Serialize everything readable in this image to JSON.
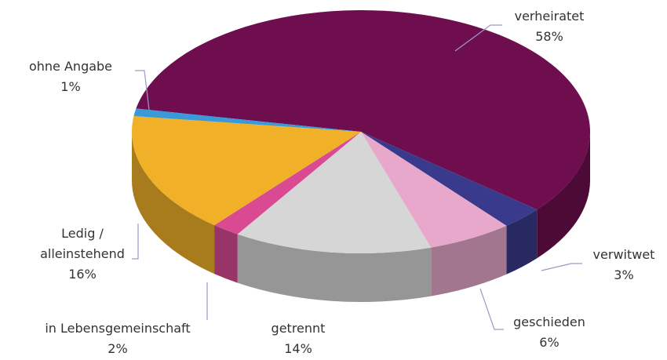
{
  "chart_data": {
    "type": "pie",
    "categories": [
      "verheiratet",
      "verwitwet",
      "geschieden",
      "getrennt",
      "in Lebensgemeinschaft",
      "Ledig / alleinstehend",
      "ohne Angabe"
    ],
    "values": [
      58,
      3,
      6,
      14,
      2,
      16,
      1
    ],
    "value_labels": [
      "58%",
      "3%",
      "6%",
      "14%",
      "2%",
      "16%",
      "1%"
    ],
    "colors": [
      "#6e0e4e",
      "#3a3a8c",
      "#e8a8cc",
      "#d6d6d6",
      "#d94a93",
      "#f0b028",
      "#3a9ad9"
    ]
  }
}
